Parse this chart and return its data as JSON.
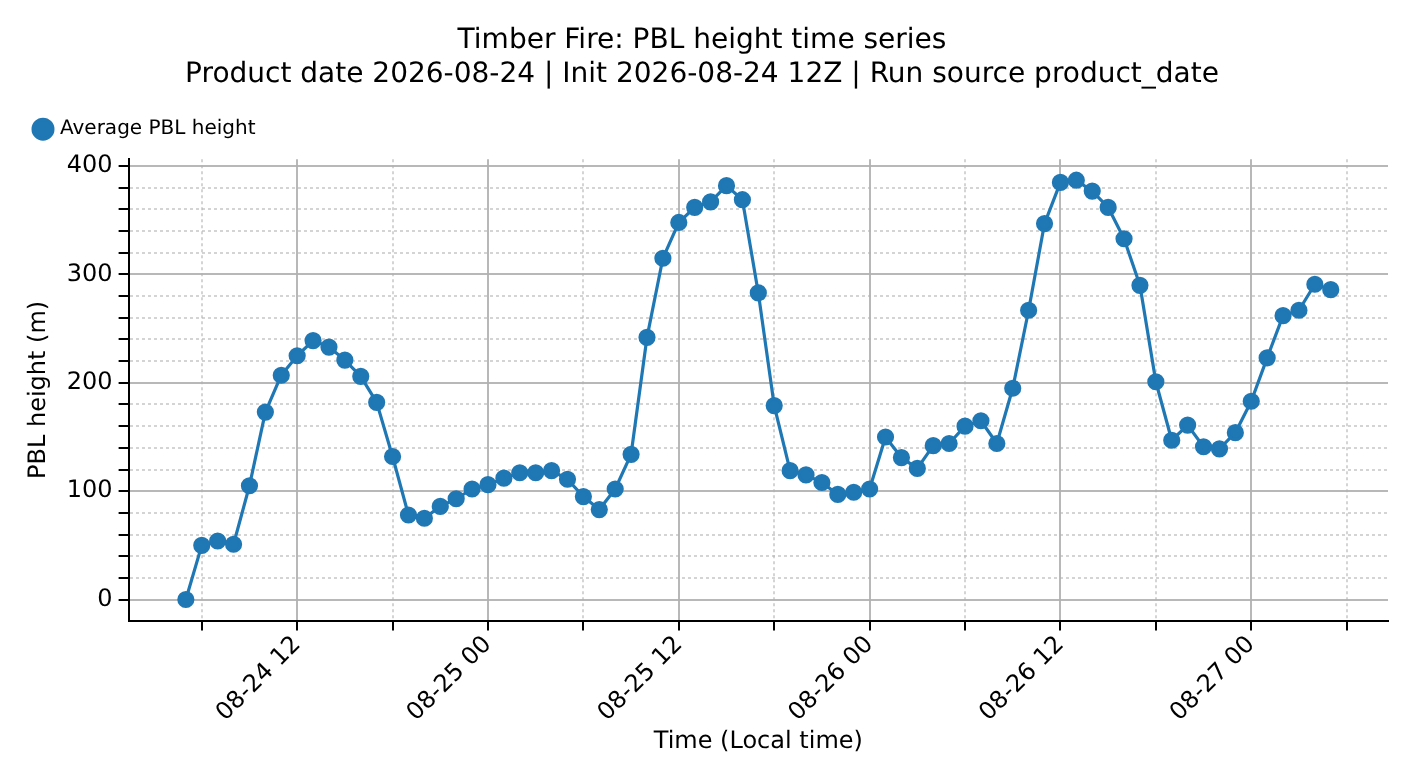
{
  "chart_data": {
    "type": "line",
    "title": "Timber Fire: PBL height time series",
    "subtitle": "Product date 2026-08-24 | Init 2026-08-24 12Z | Run source product_date",
    "xlabel": "Time (Local time)",
    "ylabel": "PBL height (m)",
    "x": [
      "2026-08-24T05:00",
      "2026-08-24T06:00",
      "2026-08-24T07:00",
      "2026-08-24T08:00",
      "2026-08-24T09:00",
      "2026-08-24T10:00",
      "2026-08-24T11:00",
      "2026-08-24T12:00",
      "2026-08-24T13:00",
      "2026-08-24T14:00",
      "2026-08-24T15:00",
      "2026-08-24T16:00",
      "2026-08-24T17:00",
      "2026-08-24T18:00",
      "2026-08-24T19:00",
      "2026-08-24T20:00",
      "2026-08-24T21:00",
      "2026-08-24T22:00",
      "2026-08-24T23:00",
      "2026-08-25T00:00",
      "2026-08-25T01:00",
      "2026-08-25T02:00",
      "2026-08-25T03:00",
      "2026-08-25T04:00",
      "2026-08-25T05:00",
      "2026-08-25T06:00",
      "2026-08-25T07:00",
      "2026-08-25T08:00",
      "2026-08-25T09:00",
      "2026-08-25T10:00",
      "2026-08-25T11:00",
      "2026-08-25T12:00",
      "2026-08-25T13:00",
      "2026-08-25T14:00",
      "2026-08-25T15:00",
      "2026-08-25T16:00",
      "2026-08-25T17:00",
      "2026-08-25T18:00",
      "2026-08-25T19:00",
      "2026-08-25T20:00",
      "2026-08-25T21:00",
      "2026-08-25T22:00",
      "2026-08-25T23:00",
      "2026-08-26T00:00",
      "2026-08-26T01:00",
      "2026-08-26T02:00",
      "2026-08-26T03:00",
      "2026-08-26T04:00",
      "2026-08-26T05:00",
      "2026-08-26T06:00",
      "2026-08-26T07:00",
      "2026-08-26T08:00",
      "2026-08-26T09:00",
      "2026-08-26T10:00",
      "2026-08-26T11:00",
      "2026-08-26T12:00",
      "2026-08-26T13:00",
      "2026-08-26T14:00",
      "2026-08-26T15:00",
      "2026-08-26T16:00",
      "2026-08-26T17:00",
      "2026-08-26T18:00",
      "2026-08-26T19:00",
      "2026-08-26T20:00",
      "2026-08-26T21:00",
      "2026-08-26T22:00",
      "2026-08-26T23:00",
      "2026-08-27T00:00",
      "2026-08-27T01:00",
      "2026-08-27T02:00",
      "2026-08-27T03:00",
      "2026-08-27T04:00",
      "2026-08-27T05:00"
    ],
    "series": [
      {
        "name": "Average PBL height",
        "color": "#1f77b4",
        "values": [
          0,
          50,
          54,
          51,
          105,
          173,
          207,
          225,
          239,
          233,
          221,
          206,
          182,
          132,
          78,
          75,
          86,
          93,
          102,
          106,
          112,
          117,
          117,
          119,
          111,
          95,
          83,
          102,
          134,
          242,
          315,
          348,
          362,
          367,
          382,
          369,
          283,
          179,
          119,
          115,
          108,
          97,
          99,
          102,
          150,
          131,
          121,
          142,
          144,
          160,
          165,
          144,
          195,
          267,
          347,
          385,
          387,
          377,
          362,
          333,
          290,
          201,
          147,
          161,
          141,
          139,
          154,
          183,
          223,
          262,
          267,
          291,
          286
        ]
      }
    ],
    "xlim": [
      "2026-08-24T01:24",
      "2026-08-27T08:36"
    ],
    "xticks": [
      {
        "value": "2026-08-24T06:00",
        "label": null
      },
      {
        "value": "2026-08-24T12:00",
        "label": "08-24 12"
      },
      {
        "value": "2026-08-24T18:00",
        "label": null
      },
      {
        "value": "2026-08-25T00:00",
        "label": "08-25 00"
      },
      {
        "value": "2026-08-25T06:00",
        "label": null
      },
      {
        "value": "2026-08-25T12:00",
        "label": "08-25 12"
      },
      {
        "value": "2026-08-25T18:00",
        "label": null
      },
      {
        "value": "2026-08-26T00:00",
        "label": "08-26 00"
      },
      {
        "value": "2026-08-26T06:00",
        "label": null
      },
      {
        "value": "2026-08-26T12:00",
        "label": "08-26 12"
      },
      {
        "value": "2026-08-26T18:00",
        "label": null
      },
      {
        "value": "2026-08-27T00:00",
        "label": "08-27 00"
      },
      {
        "value": "2026-08-27T06:00",
        "label": null
      }
    ],
    "ylim": [
      -19.4,
      406.4
    ],
    "yticks": [
      0,
      {
        "value": 20,
        "label": null
      },
      {
        "value": 40,
        "label": null
      },
      {
        "value": 60,
        "label": null
      },
      {
        "value": 80,
        "label": null
      },
      100,
      {
        "value": 120,
        "label": null
      },
      {
        "value": 140,
        "label": null
      },
      {
        "value": 160,
        "label": null
      },
      {
        "value": 180,
        "label": null
      },
      200,
      {
        "value": 220,
        "label": null
      },
      {
        "value": 240,
        "label": null
      },
      {
        "value": 260,
        "label": null
      },
      {
        "value": 280,
        "label": null
      },
      300,
      {
        "value": 320,
        "label": null
      },
      {
        "value": 340,
        "label": null
      },
      {
        "value": 360,
        "label": null
      },
      {
        "value": 380,
        "label": null
      },
      400
    ],
    "grid": true,
    "legend": "top left",
    "marker": "circle",
    "line_style": "solid"
  }
}
